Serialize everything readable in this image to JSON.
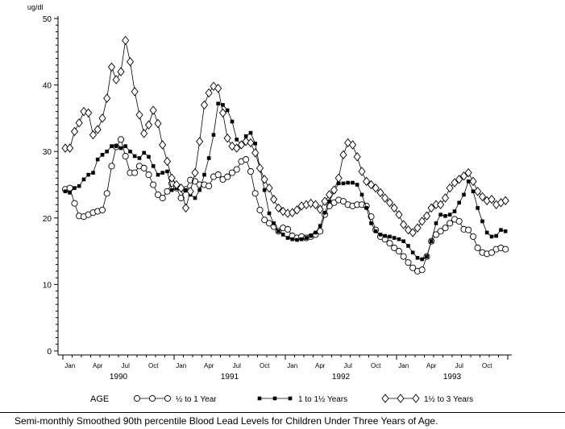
{
  "caption": "Semi-monthly Smoothed 90th percentile Blood Lead Levels for Children Under Three Years of Age.",
  "chart_data": {
    "type": "line",
    "ylabel": "ug/dl",
    "ylim": [
      0,
      50
    ],
    "yticks": [
      "0",
      "10",
      "20",
      "30",
      "40",
      "50"
    ],
    "xlim": [
      "1990-01-01",
      "1993-12-31"
    ],
    "month_tick_labels": [
      "Jan",
      "Apr",
      "Jul",
      "Oct"
    ],
    "year_labels": [
      "1990",
      "1991",
      "1992",
      "1993"
    ],
    "grid": false,
    "legend": {
      "title": "AGE",
      "placement": "bottom"
    },
    "x": [
      "1990-01-01",
      "1990-01-16",
      "1990-02-01",
      "1990-02-16",
      "1990-03-01",
      "1990-03-16",
      "1990-04-01",
      "1990-04-16",
      "1990-05-01",
      "1990-05-16",
      "1990-06-01",
      "1990-06-16",
      "1990-07-01",
      "1990-07-16",
      "1990-08-01",
      "1990-08-16",
      "1990-09-01",
      "1990-09-16",
      "1990-10-01",
      "1990-10-16",
      "1990-11-01",
      "1990-11-16",
      "1990-12-01",
      "1990-12-16",
      "1991-01-01",
      "1991-01-16",
      "1991-02-01",
      "1991-02-16",
      "1991-03-01",
      "1991-03-16",
      "1991-04-01",
      "1991-04-16",
      "1991-05-01",
      "1991-05-16",
      "1991-06-01",
      "1991-06-16",
      "1991-07-01",
      "1991-07-16",
      "1991-08-01",
      "1991-08-16",
      "1991-09-01",
      "1991-09-16",
      "1991-10-01",
      "1991-10-16",
      "1991-11-01",
      "1991-11-16",
      "1991-12-01",
      "1991-12-16",
      "1992-01-01",
      "1992-01-16",
      "1992-02-01",
      "1992-02-16",
      "1992-03-01",
      "1992-03-16",
      "1992-04-01",
      "1992-04-16",
      "1992-05-01",
      "1992-05-16",
      "1992-06-01",
      "1992-06-16",
      "1992-07-01",
      "1992-07-16",
      "1992-08-01",
      "1992-08-16",
      "1992-09-01",
      "1992-09-16",
      "1992-10-01",
      "1992-10-16",
      "1992-11-01",
      "1992-11-16",
      "1992-12-01",
      "1992-12-16",
      "1993-01-01",
      "1993-01-16",
      "1993-02-01",
      "1993-02-16",
      "1993-03-01",
      "1993-03-16",
      "1993-04-01",
      "1993-04-16",
      "1993-05-01",
      "1993-05-16",
      "1993-06-01",
      "1993-06-16",
      "1993-07-01",
      "1993-07-16",
      "1993-08-01",
      "1993-08-16",
      "1993-09-01",
      "1993-09-16",
      "1993-10-01",
      "1993-10-16",
      "1993-11-01",
      "1993-11-16",
      "1993-12-01",
      "1993-12-16"
    ],
    "series": [
      {
        "name": "½ to 1 Year",
        "marker": "circle",
        "values": [
          24.3,
          24.5,
          22.2,
          20.3,
          20.2,
          20.5,
          20.8,
          21,
          21.2,
          23.7,
          27.8,
          30.7,
          31.8,
          29.3,
          26.8,
          26.8,
          27.8,
          27.5,
          26.5,
          25,
          23.5,
          23,
          24,
          25.2,
          24.5,
          23,
          24.3,
          25.7,
          25.5,
          25,
          25,
          24.8,
          26.2,
          26.5,
          25.8,
          26.2,
          26.8,
          27.3,
          28.5,
          28.8,
          27,
          23.7,
          21.2,
          19.7,
          19.2,
          18.7,
          18,
          18.5,
          18.3,
          17.3,
          17,
          17.2,
          17,
          17.2,
          17.5,
          18,
          20.5,
          21.8,
          22.3,
          22.7,
          22.5,
          22,
          21.8,
          22,
          22,
          21.8,
          20.2,
          18.2,
          17.2,
          16.8,
          16.2,
          15.5,
          15,
          14.2,
          13.3,
          12.5,
          12,
          12.2,
          14.2,
          16.5,
          17.5,
          18,
          18.5,
          19.2,
          19.8,
          19.5,
          18.3,
          18.2,
          17.2,
          15.5,
          14.8,
          14.6,
          14.8,
          15.3,
          15.5,
          15.3
        ]
      },
      {
        "name": "1 to 1½ Years",
        "marker": "square",
        "values": [
          24,
          23.8,
          24.5,
          24.8,
          25.8,
          26.5,
          26.8,
          28.8,
          29.5,
          30,
          30.8,
          30.8,
          30.5,
          30.8,
          30,
          29.3,
          29,
          29.8,
          29.2,
          27.8,
          26.5,
          26.8,
          27,
          24.2,
          24.5,
          24.5,
          24.2,
          23.5,
          23,
          24.2,
          26.5,
          29,
          32.5,
          37.2,
          37,
          36.2,
          34.5,
          31.8,
          31,
          32.3,
          32.8,
          31.2,
          27.5,
          24.2,
          20.7,
          19.2,
          18,
          17.5,
          17,
          16.8,
          16.7,
          16.8,
          17,
          17.3,
          17.8,
          18.8,
          20.8,
          22.5,
          24,
          25.2,
          25.2,
          25.3,
          25.3,
          25,
          23.5,
          21.5,
          19.2,
          18,
          17.5,
          17.3,
          17.2,
          17,
          16.8,
          16.5,
          15.8,
          14.8,
          14,
          13.8,
          14.2,
          16.5,
          19.2,
          20.5,
          20.3,
          20.5,
          21,
          22.3,
          23.5,
          25.5,
          24,
          21.5,
          19.5,
          17.8,
          17.2,
          17.3,
          18.2,
          18
        ]
      },
      {
        "name": "1½ to 3 Years",
        "marker": "diamond",
        "values": [
          30.5,
          30.5,
          33,
          34.3,
          36,
          35.8,
          32.5,
          33.3,
          35,
          38,
          42.7,
          40.8,
          42,
          46.7,
          43.5,
          39,
          35.5,
          32.7,
          34,
          36.2,
          34.2,
          31,
          28.5,
          26,
          25,
          24.5,
          21.5,
          24,
          26.8,
          31.5,
          37,
          38.8,
          39.8,
          39.5,
          35.8,
          32,
          30.8,
          30.5,
          31,
          31.5,
          31.3,
          29.8,
          27.5,
          25.8,
          24.5,
          22.8,
          21.5,
          21,
          20.7,
          20.8,
          21.2,
          21.8,
          22,
          22.2,
          22,
          21.3,
          22.5,
          23.5,
          24.2,
          26,
          29.5,
          31.3,
          31,
          29.2,
          27,
          25.5,
          25,
          24.5,
          23.8,
          23,
          22.3,
          21.5,
          20.5,
          19,
          18.2,
          17.8,
          18.5,
          19.5,
          20.3,
          21.5,
          22,
          22,
          23,
          24.5,
          25.3,
          25.8,
          26.3,
          26.8,
          25.5,
          24,
          23.2,
          22.6,
          22.8,
          22,
          22.3,
          22.6
        ]
      }
    ]
  }
}
